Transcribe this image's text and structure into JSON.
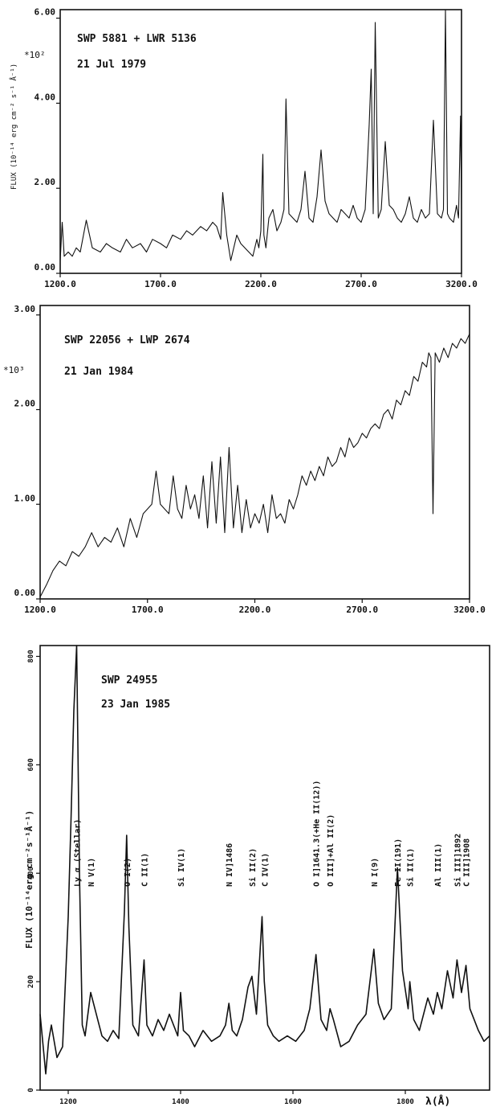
{
  "chart_data": [
    {
      "type": "line",
      "title": "SWP 5881 + LWR 5136",
      "subtitle": "21 Jul 1979",
      "ylabel": "FLUX (10⁻¹⁴ erg cm⁻² s⁻¹ Å⁻¹)",
      "y_scale_note": "*10²",
      "xlim": [
        1200,
        3200
      ],
      "ylim": [
        0,
        6.2
      ],
      "x_ticks": [
        "1200.0",
        "1700.0",
        "2200.0",
        "2700.0",
        "3200.0"
      ],
      "x_tick_values": [
        1200,
        1700,
        2200,
        2700,
        3200
      ],
      "y_ticks": [
        "0.00",
        "2.00",
        "4.00",
        "6.00"
      ],
      "y_tick_values": [
        0,
        2,
        4,
        6
      ],
      "series": [
        {
          "x": [
            1200,
            1210,
            1220,
            1240,
            1260,
            1280,
            1300,
            1330,
            1360,
            1400,
            1430,
            1460,
            1500,
            1530,
            1560,
            1600,
            1630,
            1660,
            1700,
            1730,
            1760,
            1800,
            1830,
            1860,
            1900,
            1930,
            1960,
            1980,
            2000,
            2010,
            2030,
            2050,
            2080,
            2100,
            2120,
            2140,
            2160,
            2180,
            2190,
            2200,
            2210,
            2215,
            2225,
            2240,
            2260,
            2280,
            2300,
            2315,
            2325,
            2340,
            2360,
            2380,
            2400,
            2420,
            2440,
            2460,
            2480,
            2500,
            2520,
            2540,
            2560,
            2580,
            2600,
            2620,
            2640,
            2660,
            2680,
            2700,
            2720,
            2740,
            2750,
            2760,
            2770,
            2785,
            2800,
            2820,
            2840,
            2860,
            2880,
            2900,
            2920,
            2940,
            2960,
            2980,
            3000,
            3020,
            3040,
            3060,
            3080,
            3100,
            3110,
            3120,
            3130,
            3140,
            3160,
            3175,
            3185,
            3195,
            3200
          ],
          "y": [
            0.3,
            1.2,
            0.4,
            0.5,
            0.4,
            0.6,
            0.5,
            1.25,
            0.6,
            0.5,
            0.7,
            0.6,
            0.5,
            0.8,
            0.6,
            0.7,
            0.5,
            0.8,
            0.7,
            0.6,
            0.9,
            0.8,
            1.0,
            0.9,
            1.1,
            1.0,
            1.2,
            1.1,
            0.8,
            1.9,
            0.9,
            0.3,
            0.9,
            0.7,
            0.6,
            0.5,
            0.4,
            0.8,
            0.6,
            1.0,
            2.8,
            0.9,
            0.6,
            1.3,
            1.5,
            1.0,
            1.2,
            1.5,
            4.1,
            1.4,
            1.3,
            1.2,
            1.5,
            2.4,
            1.3,
            1.2,
            1.8,
            2.9,
            1.7,
            1.4,
            1.3,
            1.2,
            1.5,
            1.4,
            1.3,
            1.6,
            1.3,
            1.2,
            1.5,
            3.5,
            4.8,
            1.4,
            5.9,
            1.3,
            1.5,
            3.1,
            1.6,
            1.5,
            1.3,
            1.2,
            1.4,
            1.8,
            1.3,
            1.2,
            1.5,
            1.3,
            1.4,
            3.6,
            1.4,
            1.3,
            1.5,
            6.2,
            1.4,
            1.3,
            1.2,
            1.6,
            1.3,
            3.7,
            1.5
          ]
        }
      ]
    },
    {
      "type": "line",
      "title": "SWP 22056 + LWP 2674",
      "subtitle": "21 Jan 1984",
      "y_scale_note": "*10³",
      "xlim": [
        1200,
        3200
      ],
      "ylim": [
        0,
        3.1
      ],
      "x_ticks": [
        "1200.0",
        "1700.0",
        "2200.0",
        "2700.0",
        "3200.0"
      ],
      "x_tick_values": [
        1200,
        1700,
        2200,
        2700,
        3200
      ],
      "y_ticks": [
        "0.00",
        "1.00",
        "2.00",
        "3.00"
      ],
      "y_tick_values": [
        0,
        1,
        2,
        3
      ],
      "series": [
        {
          "x": [
            1200,
            1230,
            1260,
            1290,
            1320,
            1350,
            1380,
            1410,
            1440,
            1470,
            1500,
            1530,
            1560,
            1590,
            1620,
            1650,
            1680,
            1700,
            1720,
            1740,
            1760,
            1780,
            1800,
            1820,
            1840,
            1860,
            1880,
            1900,
            1920,
            1940,
            1960,
            1980,
            2000,
            2020,
            2040,
            2060,
            2080,
            2100,
            2120,
            2140,
            2160,
            2180,
            2200,
            2220,
            2240,
            2260,
            2280,
            2300,
            2320,
            2340,
            2360,
            2380,
            2400,
            2420,
            2440,
            2460,
            2480,
            2500,
            2520,
            2540,
            2560,
            2580,
            2600,
            2620,
            2640,
            2660,
            2680,
            2700,
            2720,
            2740,
            2760,
            2780,
            2800,
            2820,
            2840,
            2860,
            2880,
            2900,
            2920,
            2940,
            2960,
            2980,
            3000,
            3010,
            3020,
            3030,
            3040,
            3060,
            3080,
            3100,
            3120,
            3140,
            3160,
            3180,
            3200
          ],
          "y": [
            0.02,
            0.15,
            0.3,
            0.4,
            0.35,
            0.5,
            0.45,
            0.55,
            0.7,
            0.55,
            0.65,
            0.6,
            0.75,
            0.55,
            0.85,
            0.65,
            0.9,
            0.95,
            1.0,
            1.35,
            1.0,
            0.95,
            0.9,
            1.3,
            0.95,
            0.85,
            1.2,
            0.95,
            1.1,
            0.85,
            1.3,
            0.75,
            1.45,
            0.8,
            1.5,
            0.7,
            1.6,
            0.75,
            1.2,
            0.7,
            1.05,
            0.75,
            0.9,
            0.8,
            1.0,
            0.7,
            1.1,
            0.85,
            0.9,
            0.8,
            1.05,
            0.95,
            1.1,
            1.3,
            1.2,
            1.35,
            1.25,
            1.4,
            1.3,
            1.5,
            1.4,
            1.45,
            1.6,
            1.5,
            1.7,
            1.6,
            1.65,
            1.75,
            1.7,
            1.8,
            1.85,
            1.8,
            1.95,
            2.0,
            1.9,
            2.1,
            2.05,
            2.2,
            2.15,
            2.35,
            2.3,
            2.5,
            2.45,
            2.6,
            2.55,
            0.9,
            2.6,
            2.5,
            2.65,
            2.55,
            2.7,
            2.65,
            2.75,
            2.7,
            2.8
          ]
        }
      ]
    },
    {
      "type": "line",
      "title": "SWP 24955",
      "subtitle": "23 Jan 1985",
      "ylabel": "FLUX (10⁻¹⁴erg cm⁻²s⁻¹Å⁻¹)",
      "xlabel": "λ(Å)",
      "xlim": [
        1150,
        1950
      ],
      "ylim": [
        0,
        820
      ],
      "x_ticks": [
        "1200",
        "1400",
        "1600",
        "1800"
      ],
      "x_tick_values": [
        1200,
        1400,
        1600,
        1800
      ],
      "y_ticks": [
        "0",
        "200",
        "400",
        "600",
        "800"
      ],
      "y_tick_values": [
        0,
        200,
        400,
        600,
        800
      ],
      "annotations": [
        {
          "text": "Ly α (Stellar)",
          "x": 1215
        },
        {
          "text": "N V(1)",
          "x": 1240
        },
        {
          "text": "O I(2)",
          "x": 1304
        },
        {
          "text": "C II(1)",
          "x": 1335
        },
        {
          "text": "Si IV(1)",
          "x": 1400
        },
        {
          "text": "N IV]1486",
          "x": 1486
        },
        {
          "text": "Si II(2)",
          "x": 1527
        },
        {
          "text": "C IV(1)",
          "x": 1549
        },
        {
          "text": "O I]1641.3(+He II(12))",
          "x": 1641
        },
        {
          "text": "O III]+Al II(2)",
          "x": 1666
        },
        {
          "text": "N I(9)",
          "x": 1744
        },
        {
          "text": "Fe II(191)",
          "x": 1786
        },
        {
          "text": "Si II(1)",
          "x": 1808
        },
        {
          "text": "Al III(1)",
          "x": 1857
        },
        {
          "text": "Si III]1892",
          "x": 1892
        },
        {
          "text": "C III]1908",
          "x": 1908
        }
      ],
      "series": [
        {
          "x": [
            1150,
            1160,
            1165,
            1170,
            1180,
            1190,
            1200,
            1205,
            1210,
            1215,
            1220,
            1225,
            1230,
            1240,
            1250,
            1260,
            1270,
            1280,
            1290,
            1300,
            1304,
            1308,
            1315,
            1325,
            1335,
            1340,
            1350,
            1360,
            1370,
            1380,
            1395,
            1400,
            1405,
            1415,
            1425,
            1440,
            1455,
            1470,
            1480,
            1486,
            1492,
            1500,
            1510,
            1520,
            1527,
            1535,
            1545,
            1549,
            1555,
            1565,
            1575,
            1590,
            1605,
            1620,
            1630,
            1641,
            1650,
            1660,
            1666,
            1672,
            1685,
            1700,
            1715,
            1730,
            1744,
            1752,
            1762,
            1775,
            1786,
            1795,
            1805,
            1808,
            1815,
            1825,
            1840,
            1850,
            1857,
            1865,
            1875,
            1885,
            1892,
            1900,
            1908,
            1915,
            1930,
            1940,
            1950
          ],
          "y": [
            140,
            30,
            90,
            120,
            60,
            80,
            320,
            500,
            700,
            820,
            400,
            120,
            100,
            180,
            140,
            100,
            90,
            110,
            95,
            330,
            470,
            300,
            120,
            100,
            240,
            120,
            100,
            130,
            110,
            140,
            100,
            180,
            110,
            100,
            80,
            110,
            90,
            100,
            120,
            160,
            110,
            100,
            130,
            190,
            210,
            140,
            320,
            200,
            120,
            100,
            90,
            100,
            90,
            110,
            150,
            250,
            130,
            110,
            150,
            130,
            80,
            90,
            120,
            140,
            260,
            160,
            130,
            150,
            410,
            220,
            150,
            200,
            130,
            110,
            170,
            140,
            180,
            150,
            220,
            170,
            240,
            180,
            230,
            150,
            110,
            90,
            100
          ]
        }
      ]
    }
  ]
}
